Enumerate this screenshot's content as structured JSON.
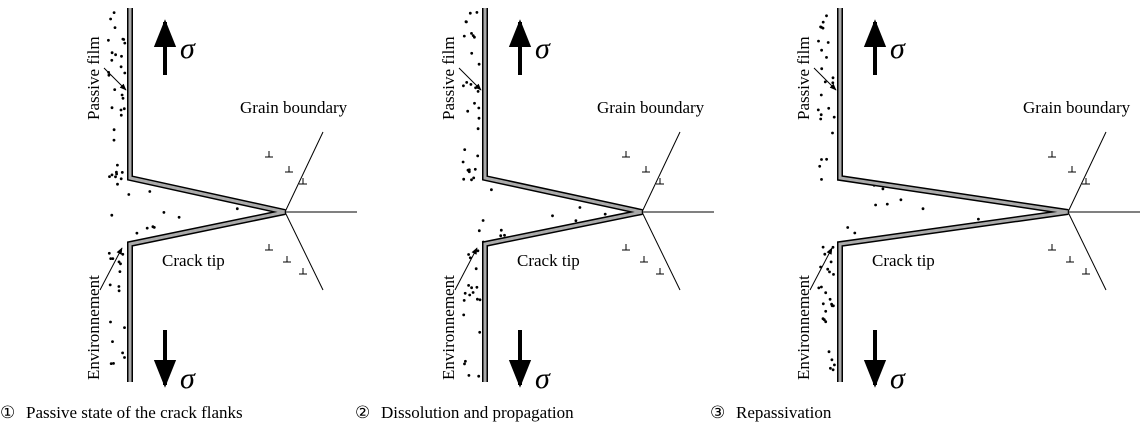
{
  "panels": [
    {
      "passive_film": "Passive film",
      "environment": "Environnement",
      "grain_boundary": "Grain boundary",
      "crack_tip": "Crack tip",
      "sigma_top": "σ",
      "sigma_bottom": "σ",
      "number": "①",
      "caption": "Passive state of the crack flanks"
    },
    {
      "passive_film": "Passive film",
      "environment": "Environnement",
      "grain_boundary": "Grain boundary",
      "crack_tip": "Crack tip",
      "sigma_top": "σ",
      "sigma_bottom": "σ",
      "number": "②",
      "caption": "Dissolution and propagation"
    },
    {
      "passive_film": "Passive film",
      "environment": "Environnement",
      "grain_boundary": "Grain boundary",
      "crack_tip": "Crack tip",
      "sigma_top": "σ",
      "sigma_bottom": "σ",
      "number": "③",
      "caption": "Repassivation"
    }
  ]
}
